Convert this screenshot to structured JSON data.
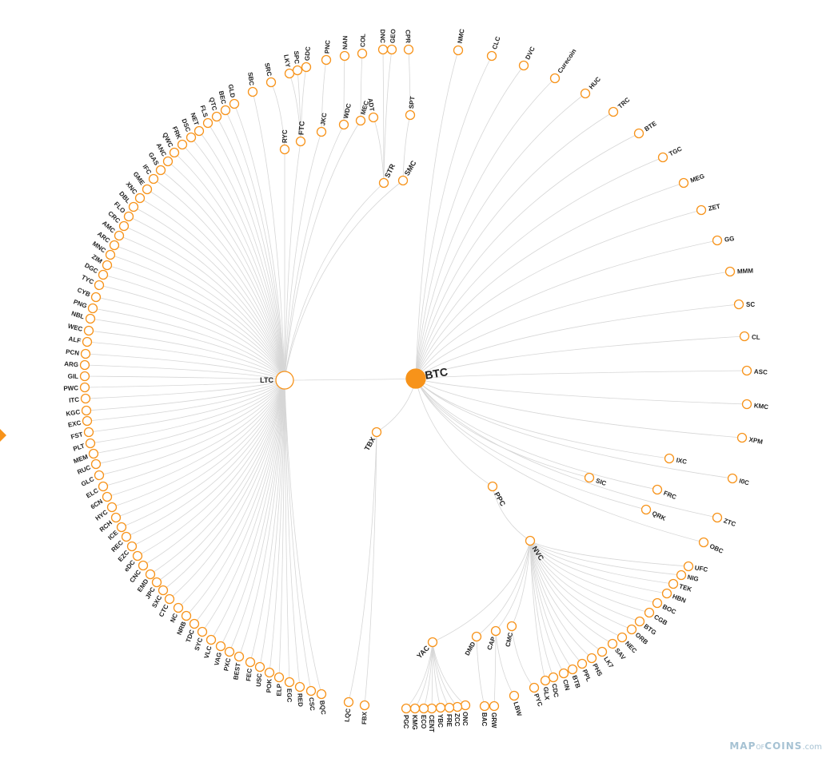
{
  "brand": {
    "map": "MAP",
    "of": "OF",
    "coins": "COINS",
    "com": ".com"
  },
  "side_arrow": {
    "color": "#f7931a"
  },
  "colors": {
    "accent": "#f7931a",
    "link": "#d6d6d6",
    "label": "#222222",
    "brand": "#a6c2d3"
  },
  "tree": {
    "name": "BTC",
    "children": [
      {
        "name": "NMC"
      },
      {
        "name": "CLC"
      },
      {
        "name": "DVC"
      },
      {
        "name": "Curecoin"
      },
      {
        "name": "HUC"
      },
      {
        "name": "TRC"
      },
      {
        "name": "BTE"
      },
      {
        "name": "TGC"
      },
      {
        "name": "MEG"
      },
      {
        "name": "ZET"
      },
      {
        "name": "GG"
      },
      {
        "name": "MMM"
      },
      {
        "name": "SC"
      },
      {
        "name": "CL"
      },
      {
        "name": "ASC"
      },
      {
        "name": "KMC"
      },
      {
        "name": "XPM"
      },
      {
        "name": "I0C"
      },
      {
        "name": "IXC"
      },
      {
        "name": "ZTC"
      },
      {
        "name": "FRC"
      },
      {
        "name": "OBC"
      },
      {
        "name": "QRK"
      },
      {
        "name": "SIC"
      },
      {
        "name": "PPC",
        "children": [
          {
            "name": "NVC",
            "children": [
              {
                "name": "UFC"
              },
              {
                "name": "NIG"
              },
              {
                "name": "TEK"
              },
              {
                "name": "HBN"
              },
              {
                "name": "BOC"
              },
              {
                "name": "CGB"
              },
              {
                "name": "BTG"
              },
              {
                "name": "ORB"
              },
              {
                "name": "NEC"
              },
              {
                "name": "SAV"
              },
              {
                "name": "LK7"
              },
              {
                "name": "PHS"
              },
              {
                "name": "PPL"
              },
              {
                "name": "BTB"
              },
              {
                "name": "CIN"
              },
              {
                "name": "CDC"
              },
              {
                "name": "GLX"
              },
              {
                "name": "CMC",
                "children": [
                  {
                    "name": "PYC"
                  }
                ]
              },
              {
                "name": "CAP",
                "children": [
                  {
                    "name": "LBW"
                  },
                  {
                    "name": "GRW"
                  }
                ]
              },
              {
                "name": "DMD",
                "children": [
                  {
                    "name": "BAC"
                  }
                ]
              },
              {
                "name": "YAC",
                "children": [
                  {
                    "name": "ONC"
                  },
                  {
                    "name": "ZCC"
                  },
                  {
                    "name": "FRE"
                  },
                  {
                    "name": "YBC"
                  },
                  {
                    "name": "CENT"
                  },
                  {
                    "name": "ECO"
                  },
                  {
                    "name": "KMG"
                  },
                  {
                    "name": "PGC"
                  }
                ]
              }
            ]
          }
        ]
      },
      {
        "name": "TBX",
        "children": [
          {
            "name": "FBX"
          },
          {
            "name": "LQC"
          }
        ]
      },
      {
        "name": "LTC",
        "children": [
          {
            "name": "BQC"
          },
          {
            "name": "CSC"
          },
          {
            "name": "RED"
          },
          {
            "name": "EGC"
          },
          {
            "name": "ELP"
          },
          {
            "name": "POK"
          },
          {
            "name": "USC"
          },
          {
            "name": "FEC"
          },
          {
            "name": "BEST"
          },
          {
            "name": "PXC"
          },
          {
            "name": "VAG"
          },
          {
            "name": "VLC"
          },
          {
            "name": "SYC"
          },
          {
            "name": "TDC"
          },
          {
            "name": "NRB"
          },
          {
            "name": "NC"
          },
          {
            "name": "CTC"
          },
          {
            "name": "SXC"
          },
          {
            "name": "JPC"
          },
          {
            "name": "EMD"
          },
          {
            "name": "CNC"
          },
          {
            "name": "eDC"
          },
          {
            "name": "EZC"
          },
          {
            "name": "REC"
          },
          {
            "name": "ICE"
          },
          {
            "name": "RCH"
          },
          {
            "name": "HYC"
          },
          {
            "name": "6CN"
          },
          {
            "name": "ELC"
          },
          {
            "name": "GLC"
          },
          {
            "name": "RUC"
          },
          {
            "name": "MEM"
          },
          {
            "name": "PLT"
          },
          {
            "name": "FST"
          },
          {
            "name": "EXC"
          },
          {
            "name": "KGC"
          },
          {
            "name": "ITC"
          },
          {
            "name": "PWC"
          },
          {
            "name": "GIL"
          },
          {
            "name": "ARG"
          },
          {
            "name": "PCN"
          },
          {
            "name": "ALF"
          },
          {
            "name": "WEC"
          },
          {
            "name": "NBL"
          },
          {
            "name": "PNG"
          },
          {
            "name": "CYB"
          },
          {
            "name": "TYC"
          },
          {
            "name": "DGC"
          },
          {
            "name": "ZIM"
          },
          {
            "name": "MNC"
          },
          {
            "name": "ARC"
          },
          {
            "name": "AMC"
          },
          {
            "name": "CRC"
          },
          {
            "name": "FLO"
          },
          {
            "name": "DBL"
          },
          {
            "name": "XNC"
          },
          {
            "name": "GME"
          },
          {
            "name": "IFC"
          },
          {
            "name": "GAS"
          },
          {
            "name": "ANC"
          },
          {
            "name": "QWC"
          },
          {
            "name": "FRK"
          },
          {
            "name": "DSC"
          },
          {
            "name": "NET"
          },
          {
            "name": "FLS"
          },
          {
            "name": "QTC"
          },
          {
            "name": "BEC"
          },
          {
            "name": "GLD"
          },
          {
            "name": "SBC"
          },
          {
            "name": "RYC",
            "children": [
              {
                "name": "SRC"
              }
            ]
          },
          {
            "name": "FTC",
            "children": [
              {
                "name": "LKY"
              },
              {
                "name": "SPC"
              },
              {
                "name": "GDC"
              }
            ]
          },
          {
            "name": "JKC",
            "children": [
              {
                "name": "PNC"
              }
            ]
          },
          {
            "name": "WDC",
            "children": [
              {
                "name": "NAN"
              }
            ]
          },
          {
            "name": "MEC",
            "children": [
              {
                "name": "COL"
              }
            ]
          },
          {
            "name": "STR",
            "children": [
              {
                "name": "ADT"
              },
              {
                "name": "DNC"
              },
              {
                "name": "GEO"
              }
            ]
          },
          {
            "name": "SMC",
            "children": [
              {
                "name": "SPT",
                "children": [
                  {
                    "name": "CPR"
                  }
                ]
              }
            ]
          }
        ]
      }
    ]
  }
}
